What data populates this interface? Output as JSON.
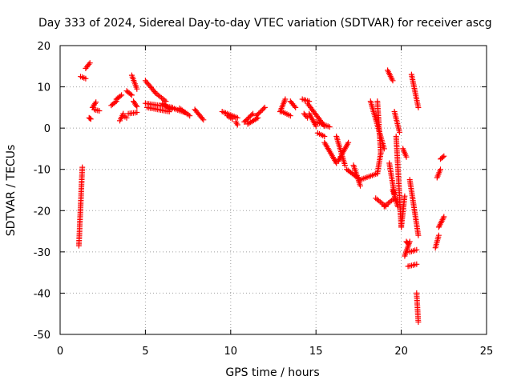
{
  "chart_data": {
    "type": "scatter",
    "title": "Day 333 of 2024, Sidereal Day-to-day VTEC variation (SDTVAR) for receiver ascg",
    "xlabel": "GPS time / hours",
    "ylabel": "SDTVAR / TECUs",
    "xlim": [
      0,
      25
    ],
    "ylim": [
      -50,
      20
    ],
    "xticks": [
      0,
      5,
      10,
      15,
      20,
      25
    ],
    "yticks": [
      20,
      10,
      0,
      -10,
      -20,
      -30,
      -40,
      -50
    ],
    "xtick_labels": [
      "0",
      "5",
      "10",
      "15",
      "20",
      "25"
    ],
    "ytick_labels": [
      "20",
      "10",
      "0",
      "-10",
      "-20",
      "-30",
      "-40",
      "-50"
    ],
    "grid": true,
    "marker": "+",
    "color": "#ff0000",
    "segments": [
      {
        "x": [
          1.1,
          1.3
        ],
        "y": [
          -28.5,
          -9.5
        ]
      },
      {
        "x": [
          1.2,
          1.5
        ],
        "y": [
          12.5,
          12.0
        ]
      },
      {
        "x": [
          1.5,
          1.75
        ],
        "y": [
          14.5,
          15.8
        ]
      },
      {
        "x": [
          1.7,
          1.8
        ],
        "y": [
          2.5,
          2.2
        ]
      },
      {
        "x": [
          1.9,
          2.1
        ],
        "y": [
          5.0,
          6.3
        ]
      },
      {
        "x": [
          2.0,
          2.3
        ],
        "y": [
          4.5,
          4.2
        ]
      },
      {
        "x": [
          3.0,
          3.3
        ],
        "y": [
          5.5,
          6.5
        ]
      },
      {
        "x": [
          3.3,
          3.6
        ],
        "y": [
          7.0,
          8.0
        ]
      },
      {
        "x": [
          3.5,
          3.7
        ],
        "y": [
          1.8,
          3.5
        ]
      },
      {
        "x": [
          3.7,
          3.9
        ],
        "y": [
          3.0,
          2.5
        ]
      },
      {
        "x": [
          3.9,
          4.2
        ],
        "y": [
          9.0,
          8.0
        ]
      },
      {
        "x": [
          4.0,
          4.5
        ],
        "y": [
          3.5,
          3.8
        ]
      },
      {
        "x": [
          4.2,
          4.5
        ],
        "y": [
          12.8,
          9.5
        ]
      },
      {
        "x": [
          4.3,
          4.5
        ],
        "y": [
          6.5,
          5.2
        ]
      },
      {
        "x": [
          5.0,
          5.6
        ],
        "y": [
          11.5,
          8.5
        ]
      },
      {
        "x": [
          5.0,
          6.6
        ],
        "y": [
          6.0,
          5.0
        ]
      },
      {
        "x": [
          5.1,
          6.4
        ],
        "y": [
          5.0,
          4.0
        ]
      },
      {
        "x": [
          5.6,
          6.2
        ],
        "y": [
          8.5,
          6.5
        ]
      },
      {
        "x": [
          6.0,
          6.5
        ],
        "y": [
          6.0,
          4.5
        ]
      },
      {
        "x": [
          6.5,
          7.3
        ],
        "y": [
          5.0,
          3.8
        ]
      },
      {
        "x": [
          7.0,
          7.6
        ],
        "y": [
          4.8,
          3.0
        ]
      },
      {
        "x": [
          7.9,
          8.4
        ],
        "y": [
          4.5,
          2.0
        ]
      },
      {
        "x": [
          9.5,
          10.4
        ],
        "y": [
          4.0,
          2.5
        ]
      },
      {
        "x": [
          9.8,
          10.1
        ],
        "y": [
          3.0,
          2.2
        ]
      },
      {
        "x": [
          10.3,
          10.4
        ],
        "y": [
          1.5,
          0.8
        ]
      },
      {
        "x": [
          10.8,
          11.3
        ],
        "y": [
          1.5,
          3.5
        ]
      },
      {
        "x": [
          11.0,
          11.6
        ],
        "y": [
          1.0,
          2.5
        ]
      },
      {
        "x": [
          11.5,
          12.0
        ],
        "y": [
          3.0,
          5.0
        ]
      },
      {
        "x": [
          12.9,
          13.2
        ],
        "y": [
          4.0,
          7.0
        ]
      },
      {
        "x": [
          13.0,
          13.5
        ],
        "y": [
          4.0,
          3.0
        ]
      },
      {
        "x": [
          13.5,
          13.8
        ],
        "y": [
          6.5,
          5.0
        ]
      },
      {
        "x": [
          14.2,
          14.6
        ],
        "y": [
          7.0,
          6.5
        ]
      },
      {
        "x": [
          14.3,
          14.5
        ],
        "y": [
          3.5,
          2.5
        ]
      },
      {
        "x": [
          14.5,
          15.5
        ],
        "y": [
          6.0,
          0.5
        ]
      },
      {
        "x": [
          14.6,
          15.0
        ],
        "y": [
          3.5,
          0.5
        ]
      },
      {
        "x": [
          15.0,
          15.8
        ],
        "y": [
          1.5,
          0.3
        ]
      },
      {
        "x": [
          15.1,
          15.5
        ],
        "y": [
          -1.2,
          -2.0
        ]
      },
      {
        "x": [
          15.5,
          16.2
        ],
        "y": [
          -3.5,
          -8.5
        ]
      },
      {
        "x": [
          16.2,
          16.7
        ],
        "y": [
          -2.0,
          -9.0
        ]
      },
      {
        "x": [
          16.3,
          16.9
        ],
        "y": [
          -8.0,
          -3.5
        ]
      },
      {
        "x": [
          16.8,
          17.6
        ],
        "y": [
          -10.0,
          -12.5
        ]
      },
      {
        "x": [
          17.2,
          17.6
        ],
        "y": [
          -9.0,
          -14.0
        ]
      },
      {
        "x": [
          17.6,
          18.6
        ],
        "y": [
          -12.5,
          -11.0
        ]
      },
      {
        "x": [
          18.6,
          18.8
        ],
        "y": [
          -11.0,
          -6.0
        ]
      },
      {
        "x": [
          18.8,
          18.6
        ],
        "y": [
          -6.0,
          6.5
        ]
      },
      {
        "x": [
          18.2,
          19.0
        ],
        "y": [
          6.5,
          -5.0
        ]
      },
      {
        "x": [
          18.5,
          19.1
        ],
        "y": [
          -17.0,
          -19.0
        ]
      },
      {
        "x": [
          19.0,
          19.6
        ],
        "y": [
          -19.0,
          -17.0
        ]
      },
      {
        "x": [
          19.2,
          19.5
        ],
        "y": [
          14.0,
          11.5
        ]
      },
      {
        "x": [
          19.3,
          19.6
        ],
        "y": [
          -8.5,
          -16.0
        ]
      },
      {
        "x": [
          19.5,
          19.8
        ],
        "y": [
          -15.0,
          -19.0
        ]
      },
      {
        "x": [
          19.6,
          19.9
        ],
        "y": [
          4.0,
          -1.0
        ]
      },
      {
        "x": [
          19.7,
          20.0
        ],
        "y": [
          -2.0,
          -24.0
        ]
      },
      {
        "x": [
          20.0,
          20.2
        ],
        "y": [
          -24.0,
          -16.5
        ]
      },
      {
        "x": [
          20.1,
          20.3
        ],
        "y": [
          -5.0,
          -7.0
        ]
      },
      {
        "x": [
          20.2,
          20.5
        ],
        "y": [
          -31.0,
          -27.5
        ]
      },
      {
        "x": [
          20.3,
          20.4
        ],
        "y": [
          -27.5,
          -28.0
        ]
      },
      {
        "x": [
          20.4,
          20.9
        ],
        "y": [
          -33.5,
          -33.0
        ]
      },
      {
        "x": [
          20.5,
          20.9
        ],
        "y": [
          -30.0,
          -29.5
        ]
      },
      {
        "x": [
          20.5,
          21.0
        ],
        "y": [
          -12.5,
          -26.0
        ]
      },
      {
        "x": [
          20.6,
          21.0
        ],
        "y": [
          13.0,
          5.0
        ]
      },
      {
        "x": [
          20.9,
          21.0
        ],
        "y": [
          -40.0,
          -47.0
        ]
      },
      {
        "x": [
          22.0,
          22.2
        ],
        "y": [
          -29.0,
          -26.0
        ]
      },
      {
        "x": [
          22.1,
          22.3
        ],
        "y": [
          -12.0,
          -10.0
        ]
      },
      {
        "x": [
          22.2,
          22.5
        ],
        "y": [
          -24.0,
          -21.5
        ]
      },
      {
        "x": [
          22.3,
          22.5
        ],
        "y": [
          -7.5,
          -6.8
        ]
      }
    ]
  }
}
